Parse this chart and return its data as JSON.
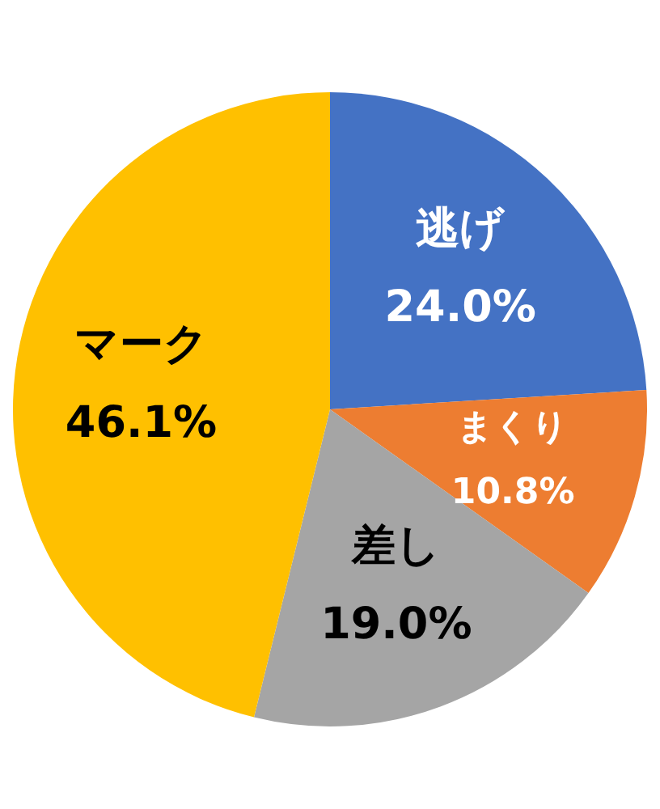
{
  "chart_data": {
    "type": "pie",
    "categories": [
      "逃げ",
      "まくり",
      "差し",
      "マーク"
    ],
    "values": [
      24.0,
      10.8,
      19.0,
      46.1
    ],
    "colors": [
      "#4472c4",
      "#ed7d31",
      "#a5a5a5",
      "#ffc000"
    ],
    "value_labels": [
      "24.0%",
      "10.8%",
      "19.0%",
      "46.1%"
    ],
    "legend": false
  }
}
